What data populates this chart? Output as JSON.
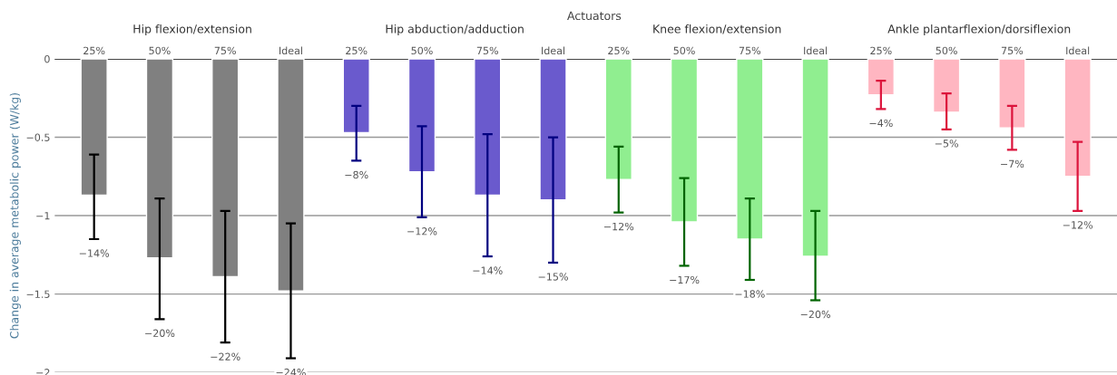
{
  "chart_data": {
    "type": "bar",
    "title": "Actuators",
    "ylabel": "Change in average metabolic power (W/kg)",
    "categories": [
      "25%",
      "50%",
      "75%",
      "Ideal",
      "25%",
      "50%",
      "75%",
      "Ideal",
      "25%",
      "50%",
      "75%",
      "Ideal",
      "25%",
      "50%",
      "75%",
      "Ideal"
    ],
    "series": [
      {
        "name": "Hip flexion/extension",
        "color": "#808080",
        "values": [
          -0.87,
          -1.27,
          -1.39,
          -1.48,
          null,
          null,
          null,
          null,
          null,
          null,
          null,
          null,
          null,
          null,
          null,
          null
        ],
        "errors": [
          [
            -1.15,
            -0.61
          ],
          [
            -1.66,
            -0.89
          ],
          [
            -1.81,
            -0.97
          ],
          [
            -1.91,
            -1.05
          ],
          null,
          null,
          null,
          null,
          null,
          null,
          null,
          null,
          null,
          null,
          null,
          null
        ]
      },
      {
        "name": "Hip abduction/adduction",
        "color": "#6a5acd",
        "values": [
          null,
          null,
          null,
          null,
          -0.47,
          -0.72,
          -0.87,
          -0.9,
          null,
          null,
          null,
          null,
          null,
          null,
          null,
          null
        ],
        "errors": [
          null,
          null,
          null,
          null,
          [
            -0.65,
            -0.3
          ],
          [
            -1.01,
            -0.43
          ],
          [
            -1.26,
            -0.48
          ],
          [
            -1.3,
            -0.5
          ],
          null,
          null,
          null,
          null,
          null,
          null,
          null,
          null
        ]
      },
      {
        "name": "Knee flexion/extension",
        "color": "#90ee90",
        "values": [
          null,
          null,
          null,
          null,
          null,
          null,
          null,
          null,
          -0.77,
          -1.04,
          -1.15,
          -1.26,
          null,
          null,
          null,
          null
        ],
        "errors": [
          null,
          null,
          null,
          null,
          null,
          null,
          null,
          null,
          [
            -0.98,
            -0.56
          ],
          [
            -1.32,
            -0.76
          ],
          [
            -1.41,
            -0.89
          ],
          [
            -1.54,
            -0.97
          ],
          null,
          null,
          null,
          null
        ]
      },
      {
        "name": "Ankle plantarflexion/dorsiflexion",
        "color": "#ffb6c1",
        "values": [
          null,
          null,
          null,
          null,
          null,
          null,
          null,
          null,
          null,
          null,
          null,
          null,
          -0.23,
          -0.34,
          -0.44,
          -0.75
        ],
        "errors": [
          null,
          null,
          null,
          null,
          null,
          null,
          null,
          null,
          null,
          null,
          null,
          null,
          [
            -0.32,
            -0.14
          ],
          [
            -0.45,
            -0.22
          ],
          [
            -0.58,
            -0.3
          ],
          [
            -0.97,
            -0.53
          ]
        ]
      }
    ],
    "annotations": [
      "−14%",
      "−20%",
      "−22%",
      "−24%",
      "−8%",
      "−12%",
      "−14%",
      "−15%",
      "−12%",
      "−17%",
      "−18%",
      "−20%",
      "−4%",
      "−5%",
      "−7%",
      "−12%"
    ],
    "ylim": [
      -2,
      0
    ],
    "yticks": [
      0,
      {
        "value": -0.5,
        "label": "−0.5"
      },
      {
        "value": -1,
        "label": "−1"
      },
      {
        "value": -1.5,
        "label": "−1.5"
      },
      {
        "value": -2,
        "label": "−2"
      }
    ],
    "grid": "y",
    "legend": false
  }
}
